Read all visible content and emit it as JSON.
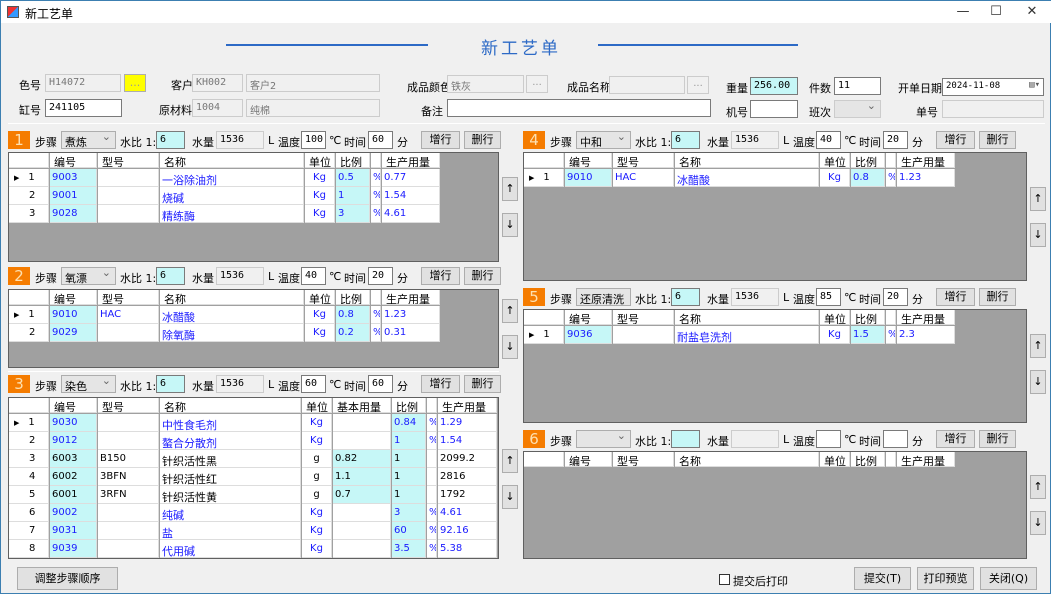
{
  "window": {
    "title": "新工艺单",
    "min": "—",
    "max": "☐",
    "close": "✕"
  },
  "heading": "新工艺单",
  "header": {
    "color_no_label": "色号",
    "color_no": "H14072",
    "color_btn": "...",
    "customer_label": "客户",
    "customer_code": "KH002",
    "customer_name": "客户2",
    "product_color_label": "成品颜色",
    "product_color": "铁灰",
    "ellipsis": "...",
    "product_name_label": "成品名称",
    "product_name": "",
    "weight_label": "重量",
    "weight": "256.00",
    "pieces_label": "件数",
    "pieces": "11",
    "date_label": "开单日期",
    "date": "2024-11-08",
    "vat_label": "缸号",
    "vat": "241105",
    "material_label": "原材料",
    "material_code": "1004",
    "material_name": "纯棉",
    "remark_label": "备注",
    "remark": "",
    "machine_label": "机号",
    "machine": "",
    "shift_label": "班次",
    "shift": "",
    "order_no_label": "单号",
    "order_no": ""
  },
  "labels": {
    "step": "步骤",
    "ratio": "水比 1:",
    "water": "水量",
    "liter": "L",
    "temp": "温度",
    "celsius": "℃",
    "time": "时间",
    "minute": "分",
    "add_row": "增行",
    "del_row": "删行",
    "up": "↑",
    "down": "↓",
    "pct": "%"
  },
  "columns": {
    "code": "编号",
    "model": "型号",
    "name": "名称",
    "unit": "单位",
    "base": "基本用量",
    "ratio": "比例",
    "usage": "生产用量"
  },
  "steps": [
    {
      "no": "1",
      "process": "煮炼",
      "ratio": "6",
      "water": "1536",
      "temp": "100",
      "time": "60",
      "rows": [
        {
          "idx": "1",
          "code": "9003",
          "model": "",
          "name": "一浴除油剂",
          "unit": "Kg",
          "ratio": "0.5",
          "pct": "%",
          "usage": "0.77",
          "current": true
        },
        {
          "idx": "2",
          "code": "9001",
          "model": "",
          "name": "烧碱",
          "unit": "Kg",
          "ratio": "1",
          "pct": "%",
          "usage": "1.54"
        },
        {
          "idx": "3",
          "code": "9028",
          "model": "",
          "name": "精练酶",
          "unit": "Kg",
          "ratio": "3",
          "pct": "%",
          "usage": "4.61"
        }
      ]
    },
    {
      "no": "2",
      "process": "氧漂",
      "ratio": "6",
      "water": "1536",
      "temp": "40",
      "time": "20",
      "rows": [
        {
          "idx": "1",
          "code": "9010",
          "model": "HAC",
          "name": "冰醋酸",
          "unit": "Kg",
          "ratio": "0.8",
          "pct": "%",
          "usage": "1.23",
          "current": true
        },
        {
          "idx": "2",
          "code": "9029",
          "model": "",
          "name": "除氧酶",
          "unit": "Kg",
          "ratio": "0.2",
          "pct": "%",
          "usage": "0.31"
        }
      ]
    },
    {
      "no": "3",
      "process": "染色",
      "ratio": "6",
      "water": "1536",
      "temp": "60",
      "time": "60",
      "has_base": true,
      "rows": [
        {
          "idx": "1",
          "code": "9030",
          "model": "",
          "name": "中性食毛剂",
          "unit": "Kg",
          "base": "",
          "ratio": "0.84",
          "pct": "%",
          "usage": "1.29",
          "current": true
        },
        {
          "idx": "2",
          "code": "9012",
          "model": "",
          "name": "螯合分散剂",
          "unit": "Kg",
          "base": "",
          "ratio": "1",
          "pct": "%",
          "usage": "1.54"
        },
        {
          "idx": "3",
          "code": "6003",
          "model": "B150",
          "name": "针织活性黑",
          "unit": "g",
          "base": "0.82",
          "ratio": "1",
          "pct": "",
          "usage": "2099.2"
        },
        {
          "idx": "4",
          "code": "6002",
          "model": "3BFN",
          "name": "针织活性红",
          "unit": "g",
          "base": "1.1",
          "ratio": "1",
          "pct": "",
          "usage": "2816"
        },
        {
          "idx": "5",
          "code": "6001",
          "model": "3RFN",
          "name": "针织活性黄",
          "unit": "g",
          "base": "0.7",
          "ratio": "1",
          "pct": "",
          "usage": "1792"
        },
        {
          "idx": "6",
          "code": "9002",
          "model": "",
          "name": "纯碱",
          "unit": "Kg",
          "base": "",
          "ratio": "3",
          "pct": "%",
          "usage": "4.61"
        },
        {
          "idx": "7",
          "code": "9031",
          "model": "",
          "name": "盐",
          "unit": "Kg",
          "base": "",
          "ratio": "60",
          "pct": "%",
          "usage": "92.16"
        },
        {
          "idx": "8",
          "code": "9039",
          "model": "",
          "name": "代用碱",
          "unit": "Kg",
          "base": "",
          "ratio": "3.5",
          "pct": "%",
          "usage": "5.38"
        }
      ]
    },
    {
      "no": "4",
      "process": "中和",
      "ratio": "6",
      "water": "1536",
      "temp": "40",
      "time": "20",
      "rows": [
        {
          "idx": "1",
          "code": "9010",
          "model": "HAC",
          "name": "冰醋酸",
          "unit": "Kg",
          "ratio": "0.8",
          "pct": "%",
          "usage": "1.23",
          "current": true
        }
      ]
    },
    {
      "no": "5",
      "process": "还原清洗",
      "ratio": "6",
      "water": "1536",
      "temp": "85",
      "time": "20",
      "rows": [
        {
          "idx": "1",
          "code": "9036",
          "model": "",
          "name": "耐盐皂洗剂",
          "unit": "Kg",
          "ratio": "1.5",
          "pct": "%",
          "usage": "2.3",
          "current": true
        }
      ]
    },
    {
      "no": "6",
      "process": "",
      "ratio": "",
      "water": "",
      "temp": "",
      "time": "",
      "rows": []
    }
  ],
  "footer": {
    "reorder": "调整步骤顺序",
    "print_after": "提交后打印",
    "print_after_checked": false,
    "submit": "提交(T)",
    "preview": "打印预览",
    "close": "关闭(Q)"
  }
}
